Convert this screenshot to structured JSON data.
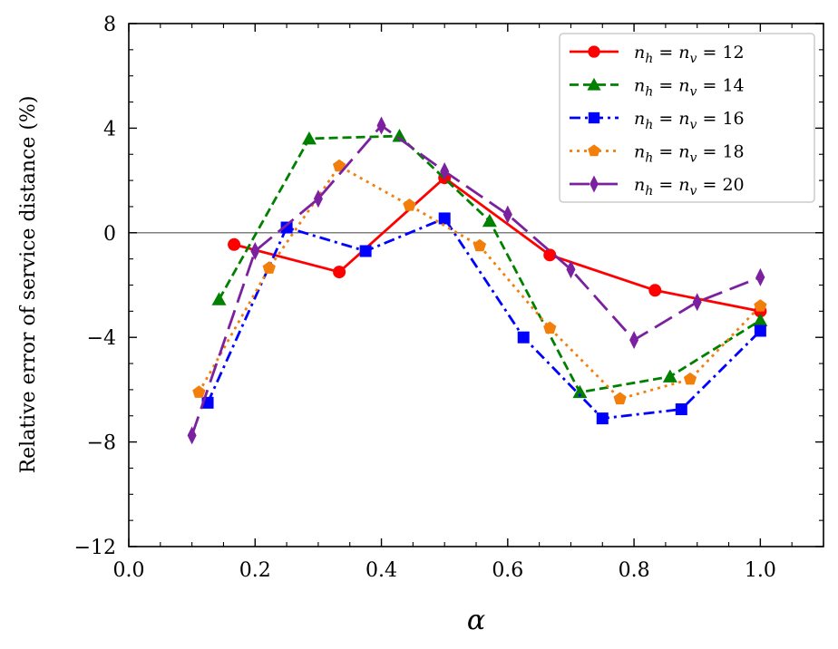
{
  "chart_data": {
    "type": "line",
    "title": "",
    "xlabel": "α",
    "ylabel": "Relative error of service distance (%)",
    "xlim": [
      0.0,
      1.1
    ],
    "ylim": [
      -12,
      8
    ],
    "xticks": [
      0.0,
      0.2,
      0.4,
      0.6,
      0.8,
      1.0
    ],
    "xtick_labels": [
      "0.0",
      "0.2",
      "0.4",
      "0.6",
      "0.8",
      "1.0"
    ],
    "yticks": [
      -12,
      -8,
      -4,
      0,
      4,
      8
    ],
    "ytick_labels": [
      "−12",
      "−8",
      "−4",
      "0",
      "4",
      "8"
    ],
    "reference_line": 0,
    "legend_position": "top-right",
    "series": [
      {
        "name": "n_h = n_v = 12",
        "label_base": "n",
        "label_sub1": "h",
        "label_mid": " = ",
        "label_sub2": "v",
        "label_value": " = 12",
        "color": "#ff0000",
        "marker": "circle",
        "linestyle": "solid",
        "x": [
          0.1667,
          0.3333,
          0.5,
          0.6667,
          0.8333,
          1.0
        ],
        "y": [
          -0.45,
          -1.5,
          2.1,
          -0.85,
          -2.2,
          -3.0
        ]
      },
      {
        "name": "n_h = n_v = 14",
        "label_base": "n",
        "label_sub1": "h",
        "label_mid": " = ",
        "label_sub2": "v",
        "label_value": " = 14",
        "color": "#008000",
        "marker": "triangle",
        "linestyle": "dashed",
        "x": [
          0.1429,
          0.2857,
          0.4286,
          0.5714,
          0.7143,
          0.8571,
          1.0
        ],
        "y": [
          -2.55,
          3.6,
          3.7,
          0.45,
          -6.1,
          -5.5,
          -3.35
        ]
      },
      {
        "name": "n_h = n_v = 16",
        "label_base": "n",
        "label_sub1": "h",
        "label_mid": " = ",
        "label_sub2": "v",
        "label_value": " = 16",
        "color": "#0000ff",
        "marker": "square",
        "linestyle": "dashdot",
        "x": [
          0.125,
          0.25,
          0.375,
          0.5,
          0.625,
          0.75,
          0.875,
          1.0
        ],
        "y": [
          -6.5,
          0.2,
          -0.7,
          0.55,
          -4.0,
          -7.1,
          -6.75,
          -3.75
        ]
      },
      {
        "name": "n_h = n_v = 18",
        "label_base": "n",
        "label_sub1": "h",
        "label_mid": " = ",
        "label_sub2": "v",
        "label_value": " = 18",
        "color": "#f27f0c",
        "marker": "pentagon",
        "linestyle": "dotted",
        "x": [
          0.1111,
          0.2222,
          0.3333,
          0.4444,
          0.5556,
          0.6667,
          0.7778,
          0.8889,
          1.0
        ],
        "y": [
          -6.1,
          -1.35,
          2.55,
          1.05,
          -0.5,
          -3.65,
          -6.35,
          -5.6,
          -2.8
        ]
      },
      {
        "name": "n_h = n_v = 20",
        "label_base": "n",
        "label_sub1": "h",
        "label_mid": " = ",
        "label_sub2": "v",
        "label_value": " = 20",
        "color": "#7b209f",
        "marker": "thin_diamond",
        "linestyle": "longdash",
        "x": [
          0.1,
          0.2,
          0.3,
          0.4,
          0.5,
          0.6,
          0.7,
          0.8,
          0.9,
          1.0
        ],
        "y": [
          -7.75,
          -0.7,
          1.3,
          4.1,
          2.35,
          0.7,
          -1.4,
          -4.1,
          -2.65,
          -1.7
        ]
      }
    ]
  }
}
